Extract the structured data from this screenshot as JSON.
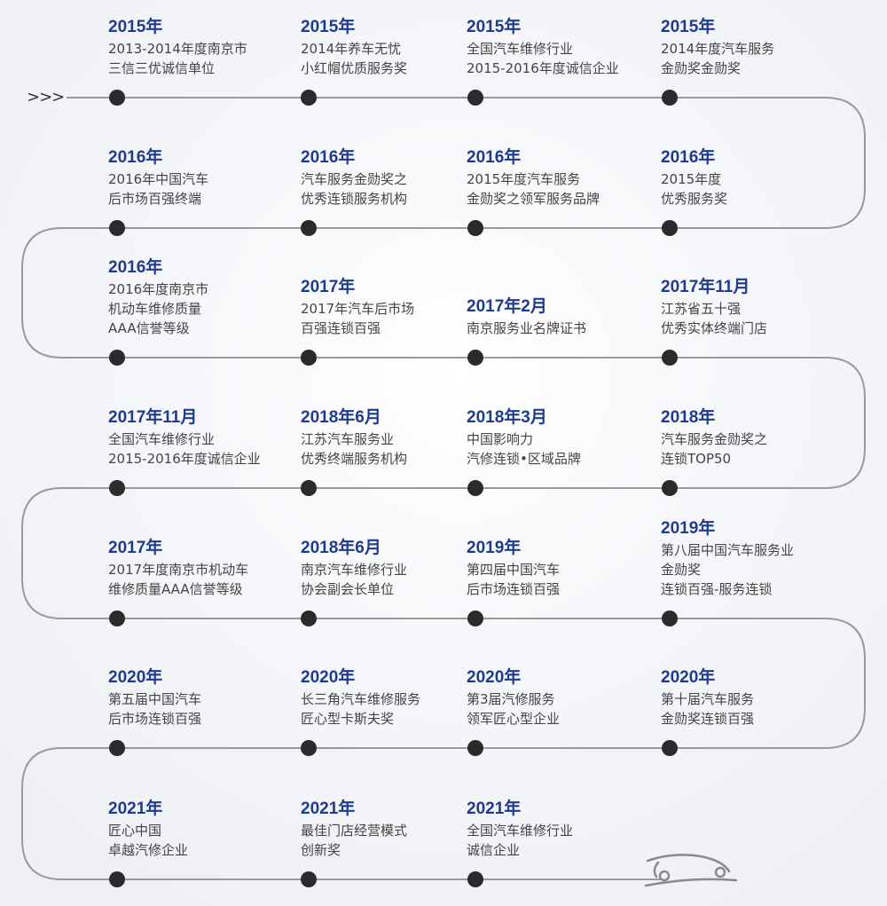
{
  "rows": [
    [
      {
        "title": "2015年",
        "lines": [
          "2013-2014年度南京市",
          "三信三优诚信单位"
        ]
      },
      {
        "title": "2015年",
        "lines": [
          "2014年养车无忧",
          "小红帽优质服务奖"
        ]
      },
      {
        "title": "2015年",
        "lines": [
          "全国汽车维修行业",
          "2015-2016年度诚信企业"
        ]
      },
      {
        "title": "2015年",
        "lines": [
          "2014年度汽车服务",
          "金勋奖金勋奖"
        ]
      }
    ],
    [
      {
        "title": "2016年",
        "lines": [
          "2016年中国汽车",
          "后市场百强终端"
        ]
      },
      {
        "title": "2016年",
        "lines": [
          "汽车服务金勋奖之",
          "优秀连锁服务机构"
        ]
      },
      {
        "title": "2016年",
        "lines": [
          "2015年度汽车服务",
          "金勋奖之领军服务品牌"
        ]
      },
      {
        "title": "2016年",
        "lines": [
          "2015年度",
          "优秀服务奖"
        ]
      }
    ],
    [
      {
        "title": "2016年",
        "lines": [
          "2016年度南京市",
          "机动车维修质量",
          "AAA信誉等级"
        ]
      },
      {
        "title": "2017年",
        "lines": [
          "2017年汽车后市场",
          "百强连锁百强"
        ]
      },
      {
        "title": "2017年2月",
        "lines": [
          "南京服务业名牌证书"
        ]
      },
      {
        "title": "2017年11月",
        "lines": [
          "江苏省五十强",
          "优秀实体终端门店"
        ]
      }
    ],
    [
      {
        "title": "2017年11月",
        "lines": [
          "全国汽车维修行业",
          "2015-2016年度诚信企业"
        ]
      },
      {
        "title": "2018年6月",
        "lines": [
          "江苏汽车服务业",
          "优秀终端服务机构"
        ]
      },
      {
        "title": "2018年3月",
        "lines": [
          "中国影响力",
          "汽修连锁•区域品牌"
        ]
      },
      {
        "title": "2018年",
        "lines": [
          "汽车服务金勋奖之",
          "连锁TOP50"
        ]
      }
    ],
    [
      {
        "title": "2017年",
        "lines": [
          "2017年度南京市机动车",
          "维修质量AAA信誉等级"
        ]
      },
      {
        "title": "2018年6月",
        "lines": [
          "南京汽车维修行业",
          "协会副会长单位"
        ]
      },
      {
        "title": "2019年",
        "lines": [
          "第四届中国汽车",
          "后市场连锁百强"
        ]
      },
      {
        "title": "2019年",
        "lines": [
          "第八届中国汽车服务业",
          "金勋奖",
          "连锁百强-服务连锁"
        ]
      }
    ],
    [
      {
        "title": "2020年",
        "lines": [
          "第五届中国汽车",
          "后市场连锁百强"
        ]
      },
      {
        "title": "2020年",
        "lines": [
          "长三角汽车维修服务",
          "匠心型卡斯夫奖"
        ]
      },
      {
        "title": "2020年",
        "lines": [
          "第3届汽修服务",
          "领军匠心型企业"
        ]
      },
      {
        "title": "2020年",
        "lines": [
          "第十届汽车服务",
          "金勋奖连锁百强"
        ]
      }
    ],
    [
      {
        "title": "2021年",
        "lines": [
          "匠心中国",
          "卓越汽修企业"
        ]
      },
      {
        "title": "2021年",
        "lines": [
          "最佳门店经营模式",
          "创新奖"
        ]
      },
      {
        "title": "2021年",
        "lines": [
          "全国汽车维修行业",
          "诚信企业"
        ]
      }
    ]
  ],
  "start_icon": "chevrons-right-icon",
  "end_icon": "car-outline-icon",
  "colors": {
    "title": "#1f3b8c",
    "dot": "#2b2b2e",
    "track": "#9a9a9a"
  }
}
